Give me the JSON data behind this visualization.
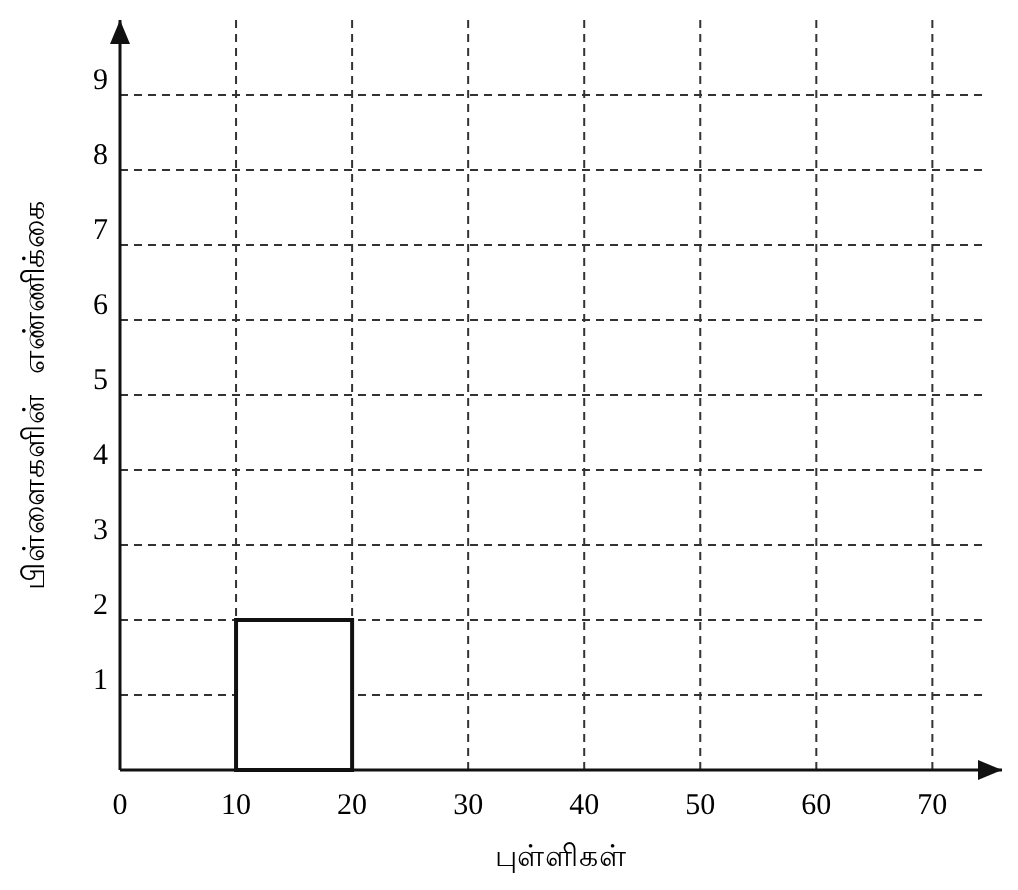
{
  "chart_data": {
    "type": "histogram",
    "xlabel": "புள்ளிகள்",
    "ylabel": "பிள்ளைகளின்  எண்ணிக்கை",
    "bins": [
      10,
      20
    ],
    "values": [
      2
    ],
    "color": "#ffffff",
    "xlim": [
      0,
      76
    ],
    "ylim": [
      0,
      10
    ],
    "xticks": [
      0,
      10,
      20,
      30,
      40,
      50,
      60,
      70
    ],
    "yticks": [
      1,
      2,
      3,
      4,
      5,
      6,
      7,
      8,
      9
    ],
    "grid": true,
    "line_style": "dashed"
  }
}
